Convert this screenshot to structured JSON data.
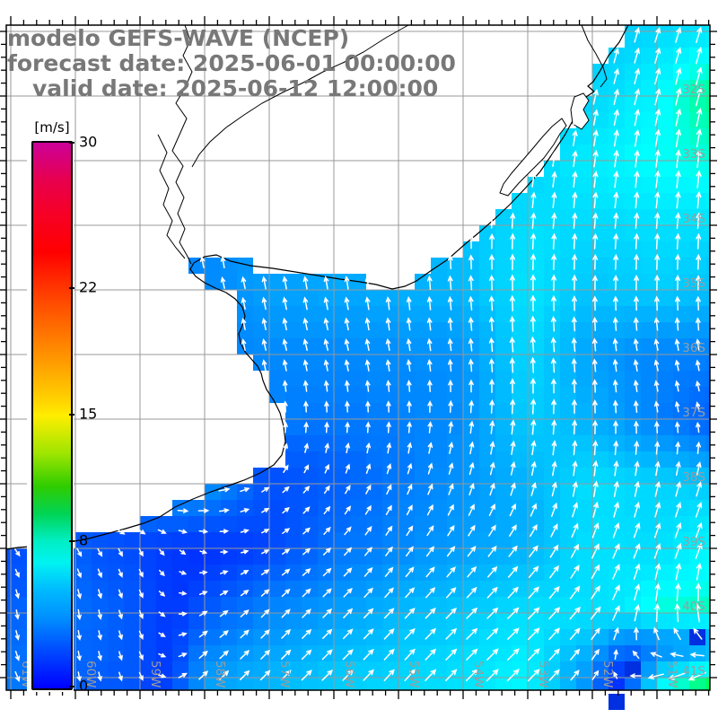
{
  "header": {
    "title": "modelo GEFS-WAVE (NCEP)",
    "forecast_line": "forecast date: 2025-06-01 00:00:00",
    "valid_line": "valid date: 2025-06-12 12:00:00",
    "text_color": "#787878"
  },
  "colorbar": {
    "unit_label": "[m/s]",
    "min": 0,
    "max": 30,
    "tick_values": [
      30,
      22,
      15,
      8,
      0
    ],
    "gradient": [
      [
        0,
        "#cc0099"
      ],
      [
        7,
        "#e8004d"
      ],
      [
        13,
        "#f60026"
      ],
      [
        20,
        "#ff0000"
      ],
      [
        30,
        "#ff5000"
      ],
      [
        40,
        "#ff9a00"
      ],
      [
        48,
        "#ffd900"
      ],
      [
        50,
        "#ffee00"
      ],
      [
        57,
        "#9de500"
      ],
      [
        63,
        "#2ecc00"
      ],
      [
        68,
        "#00d455"
      ],
      [
        73,
        "#00eec4"
      ],
      [
        77,
        "#00f2f2"
      ],
      [
        82,
        "#00baff"
      ],
      [
        87,
        "#0090ff"
      ],
      [
        93,
        "#004bff"
      ],
      [
        100,
        "#0000ff"
      ]
    ]
  },
  "axes": {
    "lat_labels": [
      "32S",
      "33S",
      "34S",
      "35S",
      "36S",
      "37S",
      "38S",
      "39S",
      "40S",
      "41S"
    ],
    "lat_values": [
      -32,
      -33,
      -34,
      -35,
      -36,
      -37,
      -38,
      -39,
      -40,
      -41
    ],
    "lon_labels": [
      "61W",
      "60W",
      "59W",
      "58W",
      "57W",
      "56W",
      "55W",
      "54W",
      "53W",
      "52W",
      "51W"
    ],
    "lon_values": [
      -61,
      -60,
      -59,
      -58,
      -57,
      -56,
      -55,
      -54,
      -53,
      -52,
      -51
    ],
    "label_color": "#9c9c9c",
    "grid_color": "#999999",
    "frame_color": "#000000"
  },
  "chart_data": {
    "type": "vector_field_map",
    "model": "GEFS-WAVE (NCEP)",
    "units": "m/s",
    "lon_range": [
      -61.07,
      -50.18
    ],
    "lat_range": [
      -41.2,
      -30.9
    ],
    "grid_lons": [
      -61,
      -60,
      -59,
      -58,
      -57,
      -56,
      -55,
      -54,
      -53,
      -52,
      -51,
      -50
    ],
    "grid_lats": [
      -31,
      -32,
      -33,
      -34,
      -35,
      -36,
      -37,
      -38,
      -39,
      -40,
      -41,
      -42
    ],
    "u": [
      [
        0,
        0,
        0,
        0,
        0,
        0,
        0.5,
        1,
        1,
        1.5,
        2,
        2
      ],
      [
        0,
        0,
        0,
        0,
        0,
        0.5,
        0.5,
        1,
        1,
        1.5,
        2,
        2.5
      ],
      [
        0,
        0,
        0,
        0,
        0,
        0.5,
        0.5,
        0.5,
        1,
        1,
        1,
        1
      ],
      [
        -0.5,
        -0.5,
        -0.5,
        -0.5,
        -0.5,
        0,
        0.5,
        0,
        0.5,
        0.5,
        0.5,
        0.5
      ],
      [
        -1,
        -1,
        -1,
        -1,
        -1,
        -1,
        -0.5,
        -0.5,
        0,
        0,
        0,
        0
      ],
      [
        -0.5,
        -0.5,
        -0.5,
        -0.5,
        -1,
        -1,
        -0.8,
        -0.5,
        -0.5,
        -0.5,
        -1,
        -0.5
      ],
      [
        0.5,
        0.5,
        0.5,
        0.5,
        0,
        0,
        0,
        0.5,
        0.5,
        0,
        -0.5,
        -1
      ],
      [
        2,
        5.5,
        6,
        5,
        2,
        1.5,
        1.5,
        1.5,
        1.5,
        1,
        1.5,
        2
      ],
      [
        1.5,
        1.5,
        1,
        1.5,
        2,
        2.5,
        2.5,
        3,
        3.5,
        3,
        2.5,
        3
      ],
      [
        0.5,
        0.5,
        1,
        2.5,
        3,
        3.5,
        4,
        4.5,
        5,
        4.5,
        0.5,
        -2
      ],
      [
        1.5,
        0.5,
        1,
        3.5,
        4,
        4.5,
        4.5,
        5,
        5.5,
        2.5,
        -7,
        -9
      ],
      [
        2,
        1.5,
        2,
        4,
        4.5,
        5,
        5,
        5.5,
        6,
        5,
        -8,
        -12
      ]
    ],
    "v": [
      [
        3,
        3,
        3,
        3,
        4,
        4,
        4.5,
        5,
        5.5,
        6,
        6.5,
        7
      ],
      [
        3,
        3,
        3,
        3.5,
        4,
        4.5,
        5,
        5.5,
        6,
        6.5,
        7.5,
        9.5
      ],
      [
        3.5,
        3.5,
        3.5,
        4,
        4.5,
        5,
        5.5,
        6,
        6.5,
        7.5,
        8,
        8.5
      ],
      [
        4,
        4,
        4,
        4.2,
        4.5,
        5.2,
        5.6,
        6,
        7,
        6.8,
        7,
        7
      ],
      [
        4,
        4,
        4,
        4.2,
        5,
        5.2,
        5.5,
        5.8,
        7.2,
        6.2,
        6.5,
        6
      ],
      [
        4,
        4,
        4,
        4,
        4.2,
        4.2,
        4.4,
        4.6,
        6.8,
        5,
        4,
        4
      ],
      [
        4.5,
        4.5,
        4.5,
        4.5,
        4,
        3.8,
        4,
        4.5,
        6.5,
        5.5,
        4,
        2.5
      ],
      [
        1,
        0.5,
        0,
        0.5,
        1.5,
        2.5,
        3.5,
        4.5,
        5.5,
        7,
        6.5,
        6
      ],
      [
        -2,
        -2.5,
        -2,
        -0.5,
        1,
        2.5,
        3.5,
        4,
        4.5,
        6.5,
        6.5,
        7.5
      ],
      [
        -3,
        -3.5,
        -2.5,
        1.5,
        3,
        3.5,
        4.2,
        4.5,
        5,
        5.5,
        8.5,
        9
      ],
      [
        -3.5,
        -3,
        -2.5,
        3.5,
        4,
        4.5,
        5,
        5,
        5.5,
        3.5,
        -2,
        -5
      ],
      [
        -3,
        -2.5,
        -1,
        3.5,
        4,
        4.5,
        5,
        5.5,
        5.5,
        3,
        -6,
        -5
      ]
    ],
    "calm_spots": [
      [
        -51.45,
        -40.9
      ],
      [
        -51.6,
        -41.4
      ],
      [
        -50.45,
        -40.35
      ]
    ],
    "arrow_color": "#ffffff"
  },
  "map_geometry": {
    "land_color": "#ffffff",
    "coast_color": "#000000",
    "coast": [
      700,
      28,
      690,
      47,
      678,
      62,
      668,
      80,
      661,
      91,
      655,
      96,
      662,
      102,
      653,
      108,
      647,
      119,
      639,
      133,
      629,
      151,
      617,
      169,
      602,
      191,
      585,
      210,
      568,
      228,
      551,
      244,
      535,
      258,
      517,
      273,
      499,
      289,
      481,
      301,
      464,
      313,
      451,
      319,
      437,
      322,
      419,
      317,
      401,
      314,
      379,
      311,
      354,
      307,
      329,
      303,
      304,
      299,
      279,
      296,
      257,
      291,
      241,
      284,
      228,
      286,
      216,
      293,
      212,
      300,
      218,
      308,
      228,
      315,
      240,
      321,
      252,
      326,
      262,
      333,
      270,
      342,
      273,
      352,
      270,
      363,
      266,
      372,
      268,
      382,
      273,
      392,
      280,
      400,
      287,
      408,
      291,
      416,
      293,
      424,
      297,
      434,
      305,
      446,
      312,
      460,
      316,
      475,
      318,
      492,
      314,
      507,
      305,
      518,
      290,
      527,
      272,
      535,
      255,
      541,
      235,
      548,
      215,
      556,
      195,
      565,
      178,
      576,
      160,
      583,
      140,
      589,
      118,
      595,
      95,
      601,
      70,
      605,
      45,
      608,
      20,
      610,
      7,
      612
    ],
    "rivers": [
      [
        206,
        28,
        212,
        45,
        204,
        62,
        214,
        80,
        206,
        98,
        196,
        115,
        208,
        132,
        200,
        150,
        192,
        168,
        204,
        185,
        196,
        203,
        205,
        220,
        198,
        238,
        206,
        255,
        200,
        270,
        208,
        284,
        213,
        294
      ],
      [
        176,
        150,
        186,
        170,
        178,
        190,
        188,
        210,
        182,
        228,
        192,
        246,
        186,
        262,
        196,
        276,
        206,
        288
      ],
      [
        455,
        28,
        430,
        42,
        405,
        58,
        382,
        70,
        360,
        80,
        338,
        92,
        315,
        103,
        292,
        115,
        272,
        128,
        252,
        142,
        234,
        158,
        222,
        172,
        214,
        186
      ]
    ],
    "lagoons_open": [
      [
        648,
        28,
        655,
        45,
        664,
        60,
        672,
        75,
        676,
        88,
        669,
        97
      ]
    ],
    "lagoons_closed": [
      [
        640,
        108,
        650,
        104,
        656,
        112,
        650,
        122,
        656,
        134,
        648,
        144,
        638,
        138,
        636,
        122
      ],
      [
        566,
        218,
        578,
        204,
        592,
        190,
        606,
        176,
        617,
        161,
        624,
        149,
        631,
        140,
        626,
        132,
        615,
        141,
        604,
        153,
        594,
        165,
        582,
        179,
        570,
        193,
        561,
        205,
        557,
        215
      ]
    ]
  }
}
